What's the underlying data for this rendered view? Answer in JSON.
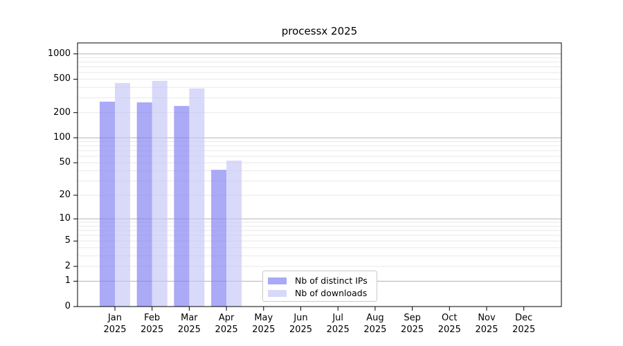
{
  "title": "processx 2025",
  "chart_data": {
    "type": "bar",
    "title": "processx 2025",
    "categories": [
      {
        "month": "Jan",
        "year": "2025"
      },
      {
        "month": "Feb",
        "year": "2025"
      },
      {
        "month": "Mar",
        "year": "2025"
      },
      {
        "month": "Apr",
        "year": "2025"
      },
      {
        "month": "May",
        "year": "2025"
      },
      {
        "month": "Jun",
        "year": "2025"
      },
      {
        "month": "Jul",
        "year": "2025"
      },
      {
        "month": "Aug",
        "year": "2025"
      },
      {
        "month": "Sep",
        "year": "2025"
      },
      {
        "month": "Oct",
        "year": "2025"
      },
      {
        "month": "Nov",
        "year": "2025"
      },
      {
        "month": "Dec",
        "year": "2025"
      }
    ],
    "series": [
      {
        "name": "Nb of distinct IPs",
        "values": [
          270,
          265,
          240,
          41,
          0,
          0,
          0,
          0,
          0,
          0,
          0,
          0
        ],
        "bar_color": "#8282f3",
        "bar_alpha": 0.68,
        "legend_color": "#a9a9f7"
      },
      {
        "name": "Nb of downloads",
        "values": [
          450,
          478,
          388,
          53,
          0,
          0,
          0,
          0,
          0,
          0,
          0,
          0
        ],
        "bar_color": "#c4c4f8",
        "bar_alpha": 0.65,
        "legend_color": "#d8d8fa"
      }
    ],
    "xlabel": "",
    "ylabel": "",
    "y_scale": "log1p",
    "ylim": [
      0,
      1350
    ],
    "y_ticks": [
      0,
      1,
      2,
      5,
      10,
      20,
      50,
      100,
      200,
      500,
      1000
    ],
    "grid": {
      "major_values": [
        1,
        10,
        100,
        1000
      ],
      "major_color": "#b2b2b2",
      "minor_color": "#e8e8e8",
      "legend_position": "lower center"
    },
    "axis_color": "#000000",
    "background_color": "#ffffff"
  }
}
